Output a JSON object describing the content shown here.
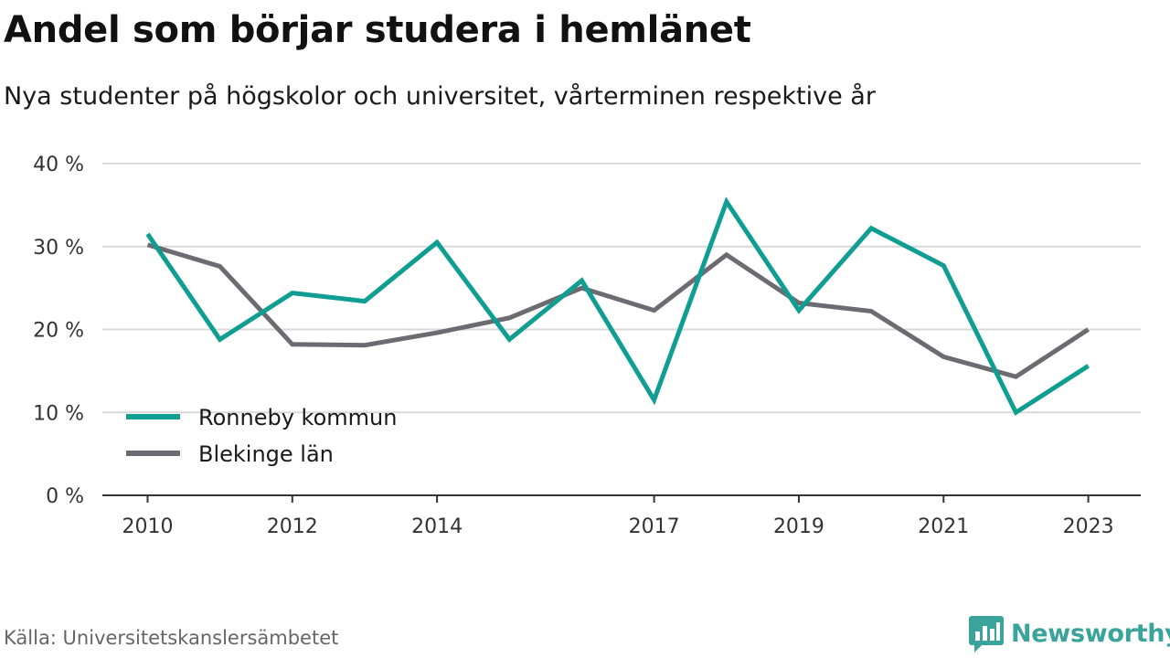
{
  "title": "Andel som börjar studera i hemlänet",
  "subtitle": "Nya studenter på högskolor och universitet, vårterminen respektive år",
  "source": "Källa: Universitetskanslersämbetet",
  "brand": {
    "name": "Newsworthy",
    "icon": "bar-chart-icon",
    "color": "#3aa39a"
  },
  "chart_data": {
    "type": "line",
    "x": [
      2010,
      2011,
      2012,
      2013,
      2014,
      2015,
      2016,
      2017,
      2018,
      2019,
      2020,
      2021,
      2022,
      2023
    ],
    "x_tick_labels": [
      "2010",
      "2012",
      "2014",
      "2017",
      "2019",
      "2021",
      "2023"
    ],
    "y_tick_labels": [
      "0 %",
      "10 %",
      "20 %",
      "30 %",
      "40 %"
    ],
    "ylim": [
      0,
      40
    ],
    "y_ticks": [
      0,
      10,
      20,
      30,
      40
    ],
    "grid": true,
    "legend_position": "bottom-left",
    "series": [
      {
        "name": "Ronneby kommun",
        "color": "#0f9e91",
        "values": [
          31.5,
          18.8,
          24.4,
          23.4,
          30.5,
          18.8,
          25.9,
          11.5,
          35.4,
          22.3,
          32.2,
          27.7,
          10.0,
          15.6
        ]
      },
      {
        "name": "Blekinge län",
        "color": "#6d6b72",
        "values": [
          30.2,
          27.6,
          18.2,
          18.1,
          19.6,
          21.4,
          25.0,
          22.3,
          29.0,
          23.2,
          22.2,
          16.7,
          14.3,
          20.0
        ]
      }
    ]
  }
}
